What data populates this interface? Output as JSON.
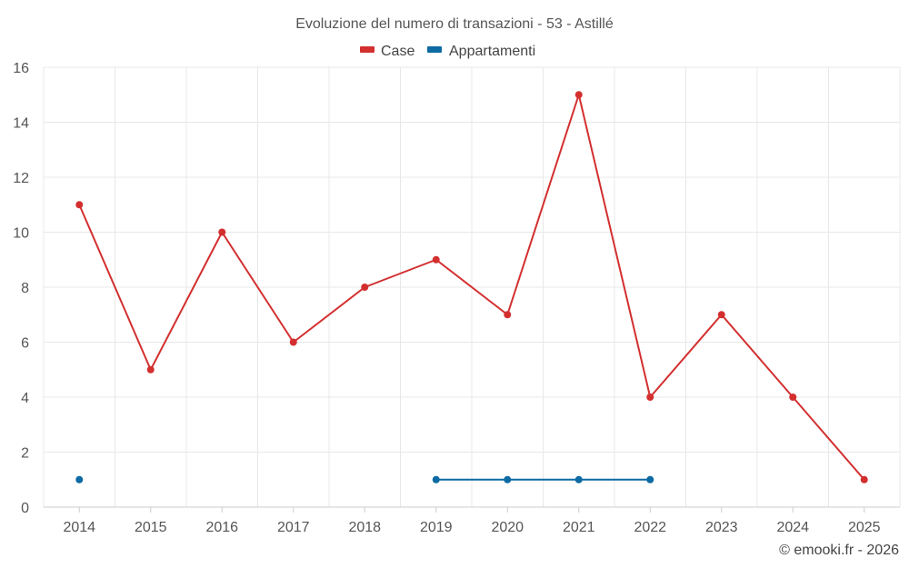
{
  "chart_data": {
    "type": "line",
    "title": "Evoluzione del numero di transazioni - 53 - Astillé",
    "categories": [
      "2014",
      "2015",
      "2016",
      "2017",
      "2018",
      "2019",
      "2020",
      "2021",
      "2022",
      "2023",
      "2024",
      "2025"
    ],
    "series": [
      {
        "name": "Case",
        "color": "#d32f2f",
        "values": [
          11,
          5,
          10,
          6,
          8,
          9,
          7,
          15,
          4,
          7,
          4,
          1
        ]
      },
      {
        "name": "Appartamenti",
        "color": "#0d6aa3",
        "values": [
          1,
          null,
          null,
          null,
          null,
          1,
          1,
          1,
          1,
          null,
          null,
          null
        ]
      }
    ],
    "ylim": [
      0,
      16
    ],
    "yticks": [
      "0",
      "2",
      "4",
      "6",
      "8",
      "10",
      "12",
      "14",
      "16"
    ],
    "xlabel": "",
    "ylabel": "",
    "grid": true,
    "legend_position": "top-center"
  },
  "credit": "© emooki.fr - 2026"
}
